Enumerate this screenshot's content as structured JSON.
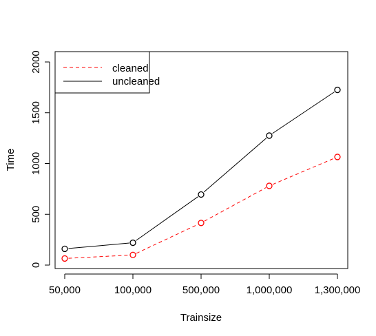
{
  "chart_data": {
    "type": "line",
    "title": "",
    "xlabel": "Trainsize",
    "ylabel": "Time",
    "categories": [
      "50,000",
      "100,000",
      "500,000",
      "1,000,000",
      "1,300,000"
    ],
    "ylim": [
      0,
      2000
    ],
    "yticks": [
      "0",
      "500",
      "1000",
      "1500",
      "2000"
    ],
    "grid": false,
    "legend_position": "top-left",
    "series": [
      {
        "name": "cleaned",
        "values": [
          65,
          100,
          415,
          780,
          1065
        ],
        "color": "#ff0000",
        "line_style": "dashed",
        "marker": "open-circle"
      },
      {
        "name": "uncleaned",
        "values": [
          160,
          220,
          695,
          1275,
          1725
        ],
        "color": "#000000",
        "line_style": "solid",
        "marker": "open-circle"
      }
    ]
  }
}
